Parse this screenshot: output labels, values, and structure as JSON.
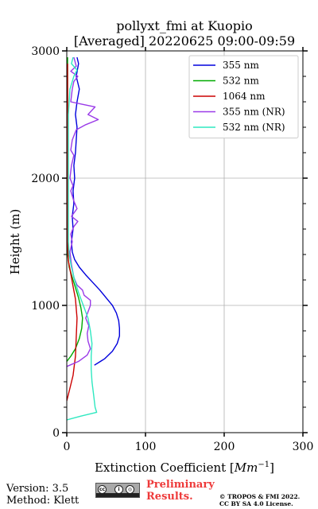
{
  "chart_data": {
    "type": "line",
    "title": "pollyxt_fmi at Kuopio",
    "subtitle": "[Averaged] 20220625 09:00-09:59",
    "xlabel": "Extinction Coefficient [Mm^-1]",
    "ylabel": "Height (m)",
    "xlim": [
      0,
      300
    ],
    "ylim": [
      0,
      3000
    ],
    "xticks": [
      "0",
      "100",
      "200",
      "300"
    ],
    "yticks": [
      "0",
      "1000",
      "2000",
      "3000"
    ],
    "grid": true,
    "legend_position": "top-right",
    "series": [
      {
        "name": "355 nm",
        "color": "#0000dd",
        "points": [
          [
            35,
            530
          ],
          [
            48,
            580
          ],
          [
            58,
            640
          ],
          [
            64,
            700
          ],
          [
            67,
            760
          ],
          [
            67,
            820
          ],
          [
            66,
            880
          ],
          [
            63,
            940
          ],
          [
            58,
            1000
          ],
          [
            50,
            1060
          ],
          [
            42,
            1120
          ],
          [
            33,
            1180
          ],
          [
            24,
            1240
          ],
          [
            16,
            1300
          ],
          [
            10,
            1360
          ],
          [
            7,
            1420
          ],
          [
            6,
            1500
          ],
          [
            8,
            1600
          ],
          [
            7,
            1700
          ],
          [
            9,
            1800
          ],
          [
            8,
            1900
          ],
          [
            10,
            2000
          ],
          [
            9,
            2100
          ],
          [
            11,
            2200
          ],
          [
            12,
            2300
          ],
          [
            13,
            2400
          ],
          [
            11,
            2500
          ],
          [
            13,
            2600
          ],
          [
            16,
            2700
          ],
          [
            12,
            2800
          ],
          [
            15,
            2900
          ],
          [
            13,
            2950
          ]
        ]
      },
      {
        "name": "532 nm",
        "color": "#00aa00",
        "points": [
          [
            0,
            560
          ],
          [
            5,
            600
          ],
          [
            11,
            660
          ],
          [
            16,
            740
          ],
          [
            19,
            820
          ],
          [
            20,
            900
          ],
          [
            18,
            980
          ],
          [
            15,
            1060
          ],
          [
            11,
            1140
          ],
          [
            7,
            1220
          ],
          [
            3,
            1300
          ],
          [
            1,
            1400
          ],
          [
            1,
            1600
          ],
          [
            1,
            1800
          ],
          [
            1,
            2000
          ],
          [
            1,
            2200
          ],
          [
            1,
            2400
          ],
          [
            1,
            2600
          ],
          [
            1,
            2800
          ],
          [
            1,
            2950
          ]
        ]
      },
      {
        "name": "1064 nm",
        "color": "#cc0000",
        "points": [
          [
            0,
            250
          ],
          [
            4,
            350
          ],
          [
            8,
            450
          ],
          [
            11,
            600
          ],
          [
            12,
            750
          ],
          [
            13,
            900
          ],
          [
            11,
            1050
          ],
          [
            8,
            1150
          ],
          [
            5,
            1250
          ],
          [
            2,
            1350
          ],
          [
            1,
            1500
          ],
          [
            1,
            1700
          ],
          [
            1,
            1900
          ],
          [
            1,
            2100
          ],
          [
            1,
            2300
          ],
          [
            1,
            2500
          ],
          [
            1,
            2700
          ],
          [
            1,
            2900
          ]
        ]
      },
      {
        "name": "355 nm (NR)",
        "color": "#9a3ae8",
        "points": [
          [
            0,
            520
          ],
          [
            15,
            560
          ],
          [
            26,
            610
          ],
          [
            30,
            660
          ],
          [
            27,
            720
          ],
          [
            26,
            780
          ],
          [
            28,
            840
          ],
          [
            24,
            900
          ],
          [
            30,
            1000
          ],
          [
            30,
            1040
          ],
          [
            22,
            1080
          ],
          [
            20,
            1120
          ],
          [
            13,
            1160
          ],
          [
            9,
            1220
          ],
          [
            6,
            1320
          ],
          [
            4,
            1420
          ],
          [
            7,
            1500
          ],
          [
            5,
            1560
          ],
          [
            9,
            1620
          ],
          [
            14,
            1660
          ],
          [
            6,
            1700
          ],
          [
            13,
            1760
          ],
          [
            9,
            1820
          ],
          [
            5,
            1900
          ],
          [
            8,
            1940
          ],
          [
            4,
            2000
          ],
          [
            6,
            2100
          ],
          [
            9,
            2180
          ],
          [
            5,
            2220
          ],
          [
            7,
            2300
          ],
          [
            12,
            2380
          ],
          [
            24,
            2420
          ],
          [
            40,
            2460
          ],
          [
            27,
            2500
          ],
          [
            36,
            2560
          ],
          [
            20,
            2580
          ],
          [
            5,
            2600
          ],
          [
            7,
            2700
          ],
          [
            9,
            2760
          ],
          [
            14,
            2800
          ],
          [
            5,
            2840
          ],
          [
            12,
            2880
          ],
          [
            9,
            2950
          ]
        ]
      },
      {
        "name": "532 nm (NR)",
        "color": "#2fe8c0",
        "points": [
          [
            0,
            100
          ],
          [
            18,
            130
          ],
          [
            38,
            160
          ],
          [
            36,
            200
          ],
          [
            34,
            300
          ],
          [
            32,
            400
          ],
          [
            31,
            500
          ],
          [
            31,
            600
          ],
          [
            32,
            700
          ],
          [
            30,
            800
          ],
          [
            27,
            900
          ],
          [
            21,
            1000
          ],
          [
            15,
            1100
          ],
          [
            10,
            1200
          ],
          [
            6,
            1300
          ],
          [
            3,
            1400
          ],
          [
            2,
            1500
          ],
          [
            2,
            1700
          ],
          [
            2,
            1900
          ],
          [
            2,
            2100
          ],
          [
            2,
            2300
          ],
          [
            2,
            2500
          ],
          [
            4,
            2700
          ],
          [
            9,
            2800
          ],
          [
            13,
            2850
          ],
          [
            6,
            2900
          ],
          [
            8,
            2950
          ]
        ]
      }
    ]
  },
  "footer": {
    "version": "Version: 3.5",
    "method": "Method: Klett",
    "preliminary_line1": "Preliminary",
    "preliminary_line2": "Results.",
    "copyright_line1": "© TROPOS & FMI 2022.",
    "copyright_line2": "CC BY SA 4.0 License."
  }
}
